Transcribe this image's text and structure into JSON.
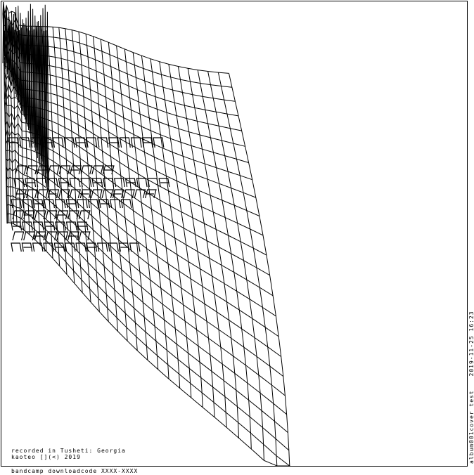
{
  "cover": {
    "credit_line_1": "recorded in Tusheti: Georgia",
    "credit_line_2": "kaoteo [](<) 2019",
    "download_line": "bandcamp downloadcode XXXX-XXXX",
    "side_label_1": "album001cover test",
    "side_label_2": "2019-11-25 16:23"
  },
  "colors": {
    "ink": "#000000",
    "paper": "#ffffff"
  }
}
